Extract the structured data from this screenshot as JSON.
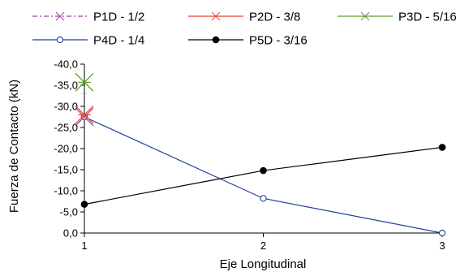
{
  "chart_data": {
    "type": "line",
    "xlabel": "Eje Longitudinal",
    "ylabel": "Fuerza de Contacto (kN)",
    "x_ticks": [
      "1",
      "2",
      "3"
    ],
    "y_ticks": [
      "-40,0",
      "-35,0",
      "-30,0",
      "-25,0",
      "-20,0",
      "-15,0",
      "-10,0",
      "-5,0",
      "0,0"
    ],
    "xlim": [
      1,
      3
    ],
    "ylim": [
      0,
      -40
    ],
    "legend_position": "top",
    "series": [
      {
        "name": "P1D - 1/2",
        "color": "#a040a0",
        "marker": "x-large",
        "dash": "dashdot",
        "x": [
          1
        ],
        "y": [
          -27.5
        ]
      },
      {
        "name": "P2D - 3/8",
        "color": "#e8432c",
        "marker": "x-large",
        "dash": "solid",
        "x": [
          1
        ],
        "y": [
          -28.0
        ]
      },
      {
        "name": "P3D - 5/16",
        "color": "#5a9e2e",
        "marker": "x-large",
        "dash": "solid",
        "x": [
          1
        ],
        "y": [
          -35.7
        ]
      },
      {
        "name": "P4D - 1/4",
        "color": "#1f3f9e",
        "marker": "circle-open",
        "dash": "solid",
        "x": [
          1,
          2,
          3
        ],
        "y": [
          -27.5,
          -8.2,
          0.0
        ]
      },
      {
        "name": "P5D - 3/16",
        "color": "#000000",
        "marker": "circle-filled",
        "dash": "solid",
        "x": [
          1,
          2,
          3
        ],
        "y": [
          -6.8,
          -14.8,
          -20.3
        ]
      }
    ]
  }
}
